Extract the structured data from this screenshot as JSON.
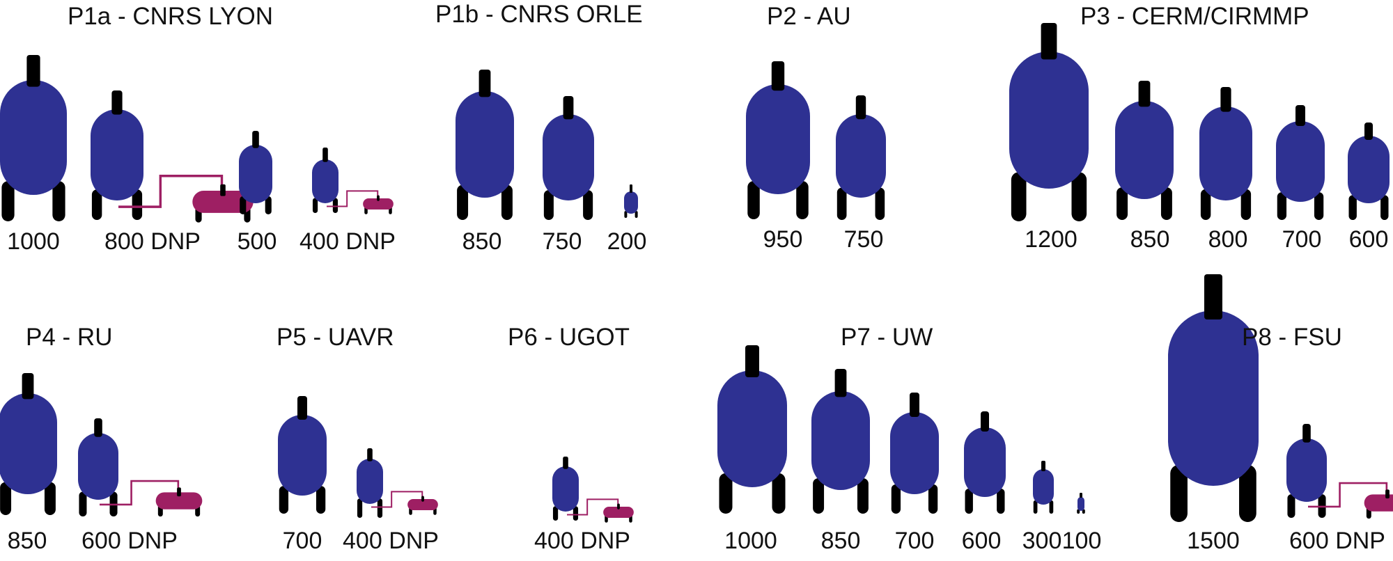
{
  "colors": {
    "magnet": "#2e3192",
    "dnp": "#9e1f63",
    "legs": "#000000",
    "text": "#111111"
  },
  "groups": [
    {
      "title": "P1a - CNRS LYON",
      "magnets": [
        {
          "label": "1000",
          "field": 1000,
          "dnp": false
        },
        {
          "label": "800 DNP",
          "field": 800,
          "dnp": true
        },
        {
          "label": "500",
          "field": 500,
          "dnp": false
        },
        {
          "label": "400 DNP",
          "field": 400,
          "dnp": true
        }
      ]
    },
    {
      "title": "P1b - CNRS ORLE",
      "magnets": [
        {
          "label": "850",
          "field": 850,
          "dnp": false
        },
        {
          "label": "750",
          "field": 750,
          "dnp": false
        },
        {
          "label": "200",
          "field": 200,
          "dnp": false
        }
      ]
    },
    {
      "title": "P2 - AU",
      "magnets": [
        {
          "label": "950",
          "field": 950,
          "dnp": false
        },
        {
          "label": "750",
          "field": 750,
          "dnp": false
        }
      ]
    },
    {
      "title": "P3 - CERM/CIRMMP",
      "magnets": [
        {
          "label": "1200",
          "field": 1200,
          "dnp": false
        },
        {
          "label": "850",
          "field": 850,
          "dnp": false
        },
        {
          "label": "800",
          "field": 800,
          "dnp": false
        },
        {
          "label": "700",
          "field": 700,
          "dnp": false
        },
        {
          "label": "600",
          "field": 600,
          "dnp": false
        }
      ]
    },
    {
      "title": "P4 - RU",
      "magnets": [
        {
          "label": "850",
          "field": 850,
          "dnp": false
        },
        {
          "label": "600 DNP",
          "field": 600,
          "dnp": true
        }
      ]
    },
    {
      "title": "P5 - UAVR",
      "magnets": [
        {
          "label": "700",
          "field": 700,
          "dnp": false
        },
        {
          "label": "400 DNP",
          "field": 400,
          "dnp": true
        }
      ]
    },
    {
      "title": "P6 - UGOT",
      "magnets": [
        {
          "label": "400 DNP",
          "field": 400,
          "dnp": true
        }
      ]
    },
    {
      "title": "P7 - UW",
      "magnets": [
        {
          "label": "1000",
          "field": 1000,
          "dnp": false
        },
        {
          "label": "850",
          "field": 850,
          "dnp": false
        },
        {
          "label": "700",
          "field": 700,
          "dnp": false
        },
        {
          "label": "600",
          "field": 600,
          "dnp": false
        },
        {
          "label": "300",
          "field": 300,
          "dnp": false
        },
        {
          "label": "100",
          "field": 100,
          "dnp": false
        }
      ]
    },
    {
      "title": "P8 - FSU",
      "magnets": [
        {
          "label": "1500",
          "field": 1500,
          "dnp": false
        },
        {
          "label": "600 DNP",
          "field": 600,
          "dnp": true
        }
      ]
    }
  ]
}
